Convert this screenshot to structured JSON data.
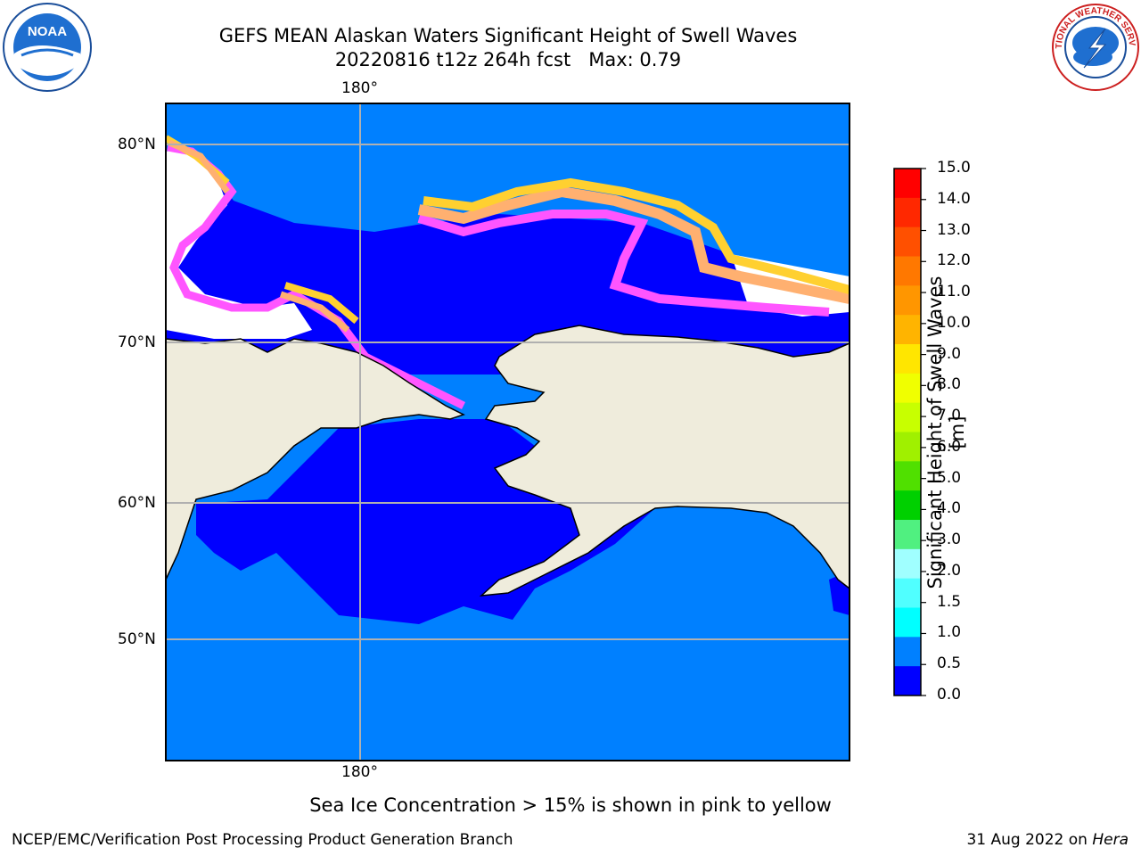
{
  "header": {
    "title_line1": "GEFS MEAN Alaskan Waters Significant Height of Swell Waves",
    "title_line2": "20220816 t12z 264h fcst   Max: 0.79"
  },
  "logos": {
    "left": {
      "name": "noaa-logo",
      "text": "NOAA"
    },
    "right": {
      "name": "nws-logo",
      "text": "NATIONAL WEATHER SERVICE"
    }
  },
  "map": {
    "lon_label_top": "180°",
    "lon_label_bottom": "180°",
    "lat_labels": [
      "80°N",
      "70°N",
      "60°N",
      "50°N"
    ],
    "colors": {
      "ocean_light": "#0080ff",
      "ocean_dark": "#0000ff",
      "land": "#efecdc",
      "ice_pink": "#ff55ff",
      "ice_orange": "#ffb070",
      "ice_yellow": "#ffd030",
      "grid": "#b0b0b0"
    }
  },
  "colorbar": {
    "label": "Significant Height of Swell Waves [m]",
    "ticks": [
      "15.0",
      "14.0",
      "13.0",
      "12.0",
      "11.0",
      "10.0",
      "9.0",
      "8.0",
      "7.0",
      "6.0",
      "5.0",
      "4.0",
      "3.0",
      "2.0",
      "1.5",
      "1.0",
      "0.5",
      "0.0"
    ],
    "colors_top_to_bottom": [
      "#ff0000",
      "#ff2800",
      "#ff5000",
      "#ff7800",
      "#ff9600",
      "#ffb400",
      "#ffe600",
      "#f0ff00",
      "#c8ff00",
      "#a0f000",
      "#50e000",
      "#00d000",
      "#50f080",
      "#a0ffff",
      "#50ffff",
      "#00ffff",
      "#0080ff",
      "#0000ff"
    ]
  },
  "footer": {
    "note": "Sea Ice Concentration > 15% is shown in pink to yellow",
    "left": "NCEP/EMC/Verification Post Processing Product Generation Branch",
    "right_date": "31 Aug 2022 on ",
    "right_host": "Hera"
  }
}
